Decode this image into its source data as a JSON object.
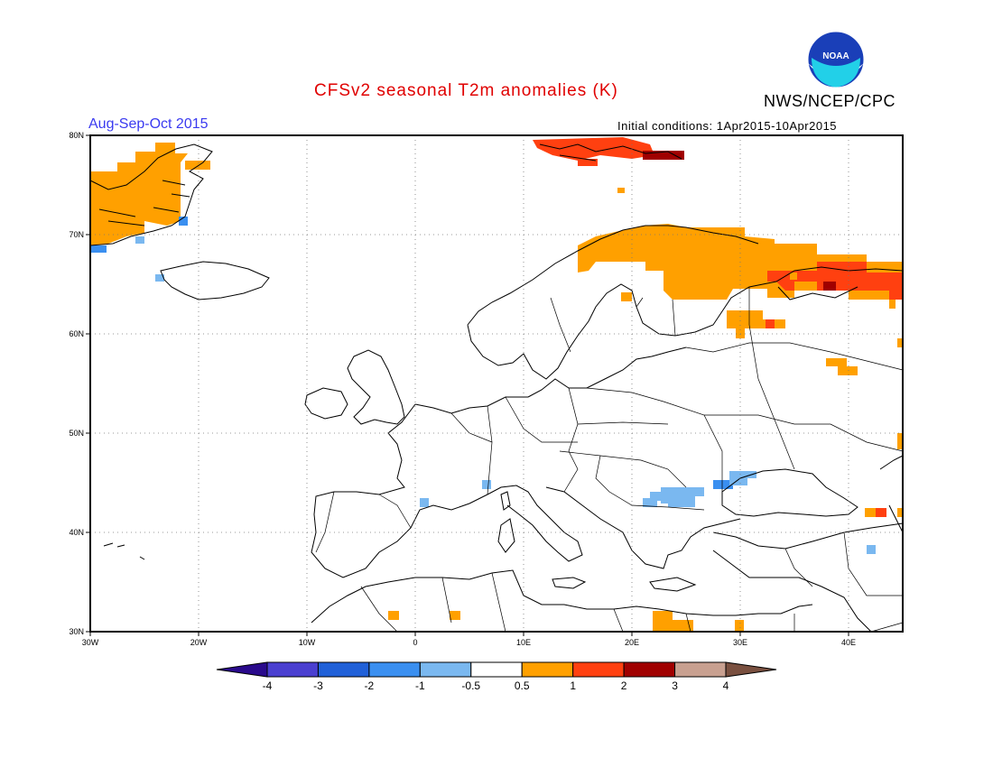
{
  "header": {
    "title": "CFSv2 seasonal T2m anomalies (K)",
    "agency": "NWS/NCEP/CPC",
    "period": "Aug-Sep-Oct 2015",
    "initial_conditions": "Initial conditions: 1Apr2015-10Apr2015",
    "logo_text": "NOAA"
  },
  "map": {
    "lon_labels": [
      "30W",
      "20W",
      "10W",
      "0",
      "10E",
      "20E",
      "30E",
      "40E"
    ],
    "lat_labels": [
      "80N",
      "70N",
      "60N",
      "50N",
      "40N",
      "30N"
    ]
  },
  "colorbar": {
    "labels": [
      "-4",
      "-3",
      "-2",
      "-1",
      "-0.5",
      "0.5",
      "1",
      "2",
      "3",
      "4"
    ],
    "colors": [
      "#2a0a8c",
      "#4a3fd0",
      "#2060d8",
      "#3a8ff0",
      "#7ab8f0",
      "#ffffff",
      "#ffa000",
      "#ff4010",
      "#a00000",
      "#c8a090",
      "#7a5040"
    ]
  }
}
